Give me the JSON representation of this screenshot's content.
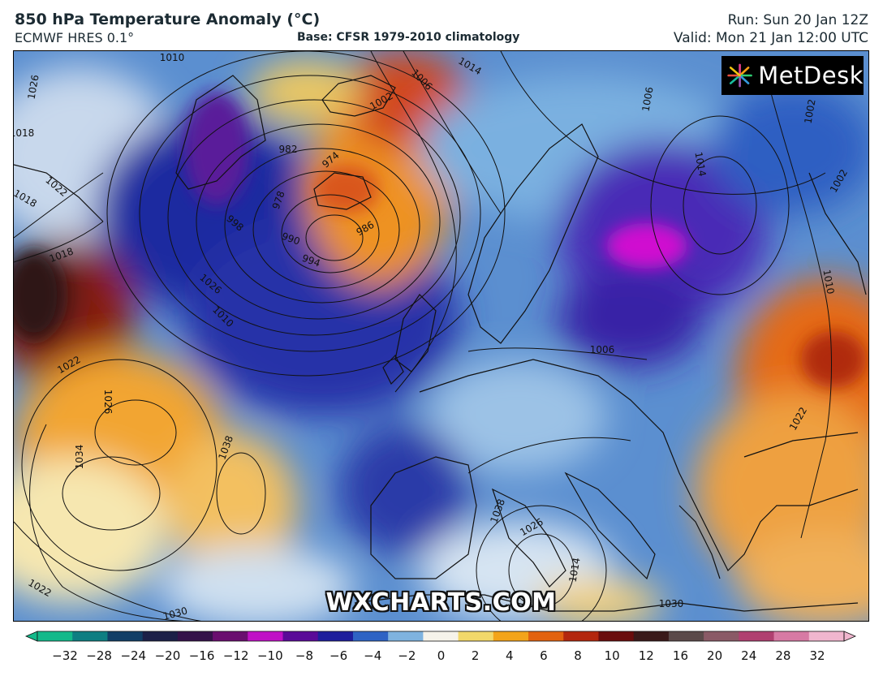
{
  "header": {
    "title": "850 hPa Temperature Anomaly (°C)",
    "model": "ECMWF HRES 0.1°",
    "base": "Base: CFSR 1979-2010 climatology",
    "run": "Run: Sun 20 Jan 12Z",
    "valid": "Valid: Mon 21 Jan 12:00 UTC"
  },
  "logo": {
    "text": "MetDesk",
    "icon": "metdesk-starburst-icon"
  },
  "watermark": "WXCHARTS.COM",
  "isobars": [
    "1026",
    "1018",
    "1006",
    "1014",
    "1010",
    "982",
    "974",
    "978",
    "998",
    "990",
    "994",
    "986",
    "1002",
    "1006",
    "1014",
    "1002",
    "1002",
    "1018",
    "1026",
    "1010",
    "1022",
    "1026",
    "1034",
    "1038",
    "1038",
    "1026",
    "1014",
    "1006",
    "1010",
    "1022",
    "1022",
    "1030",
    "1030",
    "1018",
    "1022"
  ],
  "colorbar": {
    "ticks": [
      "−32",
      "−28",
      "−24",
      "−20",
      "−16",
      "−12",
      "−10",
      "−8",
      "−6",
      "−4",
      "−2",
      "0",
      "2",
      "4",
      "6",
      "8",
      "10",
      "12",
      "16",
      "20",
      "24",
      "28",
      "32"
    ],
    "colors": [
      "#13b98a",
      "#0e7e82",
      "#113e66",
      "#1c2048",
      "#35124a",
      "#6a0e6f",
      "#c010c6",
      "#5a0a98",
      "#1e1e9c",
      "#2e63c4",
      "#7fb3df",
      "#f6f3ea",
      "#f2d86a",
      "#f3a41a",
      "#e2620f",
      "#b3270e",
      "#6a0d0d",
      "#3a1a1a",
      "#5b4a4a",
      "#8a5a66",
      "#b04070",
      "#d77aa4",
      "#f0b6ce"
    ]
  }
}
